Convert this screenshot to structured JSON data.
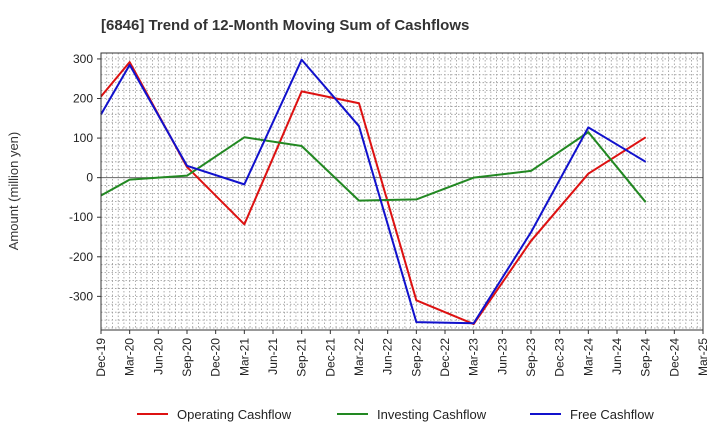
{
  "chart_data": {
    "type": "line",
    "title": "[6846]  Trend of 12-Month Moving Sum of Cashflows",
    "xlabel": "",
    "ylabel": "Amount (million yen)",
    "categories": [
      "Dec-19",
      "Mar-20",
      "Jun-20",
      "Sep-20",
      "Dec-20",
      "Mar-21",
      "Jun-21",
      "Sep-21",
      "Dec-21",
      "Mar-22",
      "Jun-22",
      "Sep-22",
      "Dec-22",
      "Mar-23",
      "Jun-23",
      "Sep-23",
      "Dec-23",
      "Mar-24",
      "Jun-24",
      "Sep-24",
      "Dec-24",
      "Mar-25"
    ],
    "yticks": [
      300,
      200,
      100,
      0,
      -100,
      -200,
      -300
    ],
    "ytick_labels": [
      "300",
      "200",
      "100",
      "0",
      "-100",
      "-200",
      "-300"
    ],
    "ylim": [
      -385,
      315
    ],
    "grid": true,
    "legend_position": "bottom",
    "series": [
      {
        "name": "Operating Cashflow",
        "color": "#dd1111",
        "values": [
          205,
          292,
          null,
          27,
          null,
          -118,
          null,
          218,
          null,
          188,
          null,
          -310,
          null,
          -370,
          null,
          -160,
          null,
          10,
          null,
          102,
          null,
          null
        ]
      },
      {
        "name": "Investing Cashflow",
        "color": "#228822",
        "values": [
          -45,
          -5,
          null,
          5,
          null,
          102,
          null,
          80,
          null,
          -58,
          null,
          -55,
          null,
          0,
          null,
          17,
          null,
          115,
          null,
          -62,
          null,
          null
        ]
      },
      {
        "name": "Free Cashflow",
        "color": "#1111cc",
        "values": [
          160,
          285,
          null,
          30,
          null,
          -17,
          null,
          298,
          null,
          130,
          null,
          -365,
          null,
          -368,
          null,
          -138,
          null,
          127,
          null,
          40,
          null,
          null
        ]
      }
    ]
  }
}
